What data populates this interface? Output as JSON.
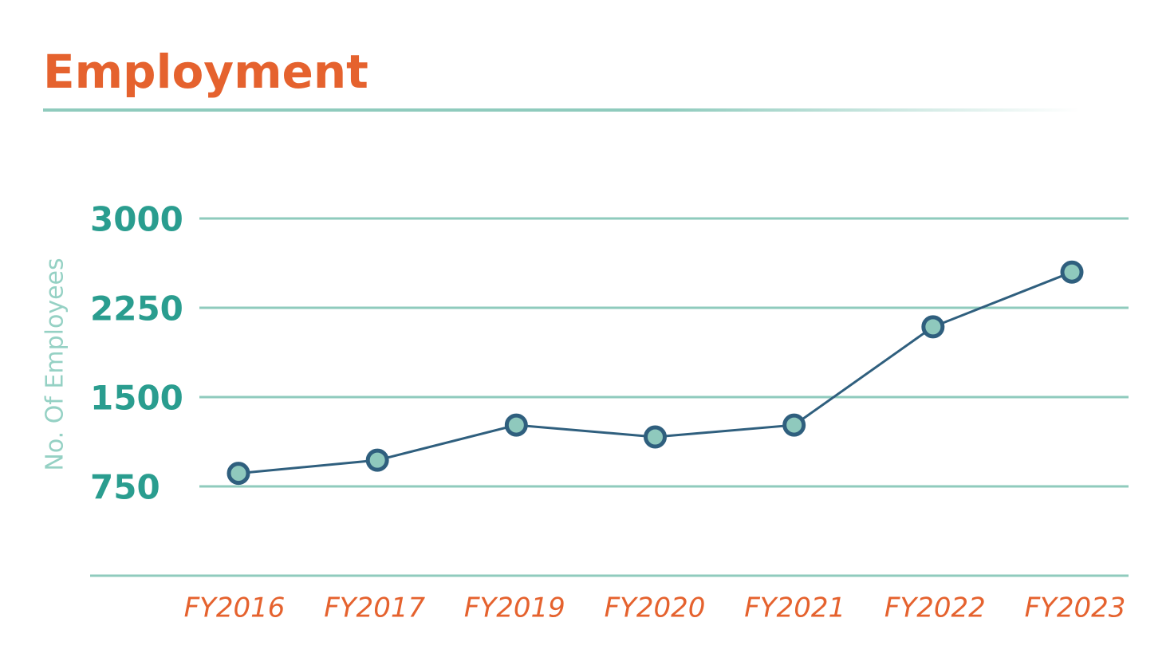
{
  "chart_data": {
    "type": "line",
    "title": "Employment",
    "y_label": "No. Of Employees",
    "categories": [
      "FY2016",
      "FY2017",
      "FY2019",
      "FY2020",
      "FY2021",
      "FY2022",
      "FY2023"
    ],
    "series": [
      {
        "name": "Employees",
        "color": "#2f5f7e",
        "marker_fill": "#8fc9bd",
        "values": [
          860,
          970,
          1265,
          1165,
          1265,
          2090,
          2550
        ]
      }
    ],
    "ylim": [
      0,
      3000
    ],
    "yticks": [
      750,
      1500,
      2250,
      3000
    ],
    "grid": true
  }
}
